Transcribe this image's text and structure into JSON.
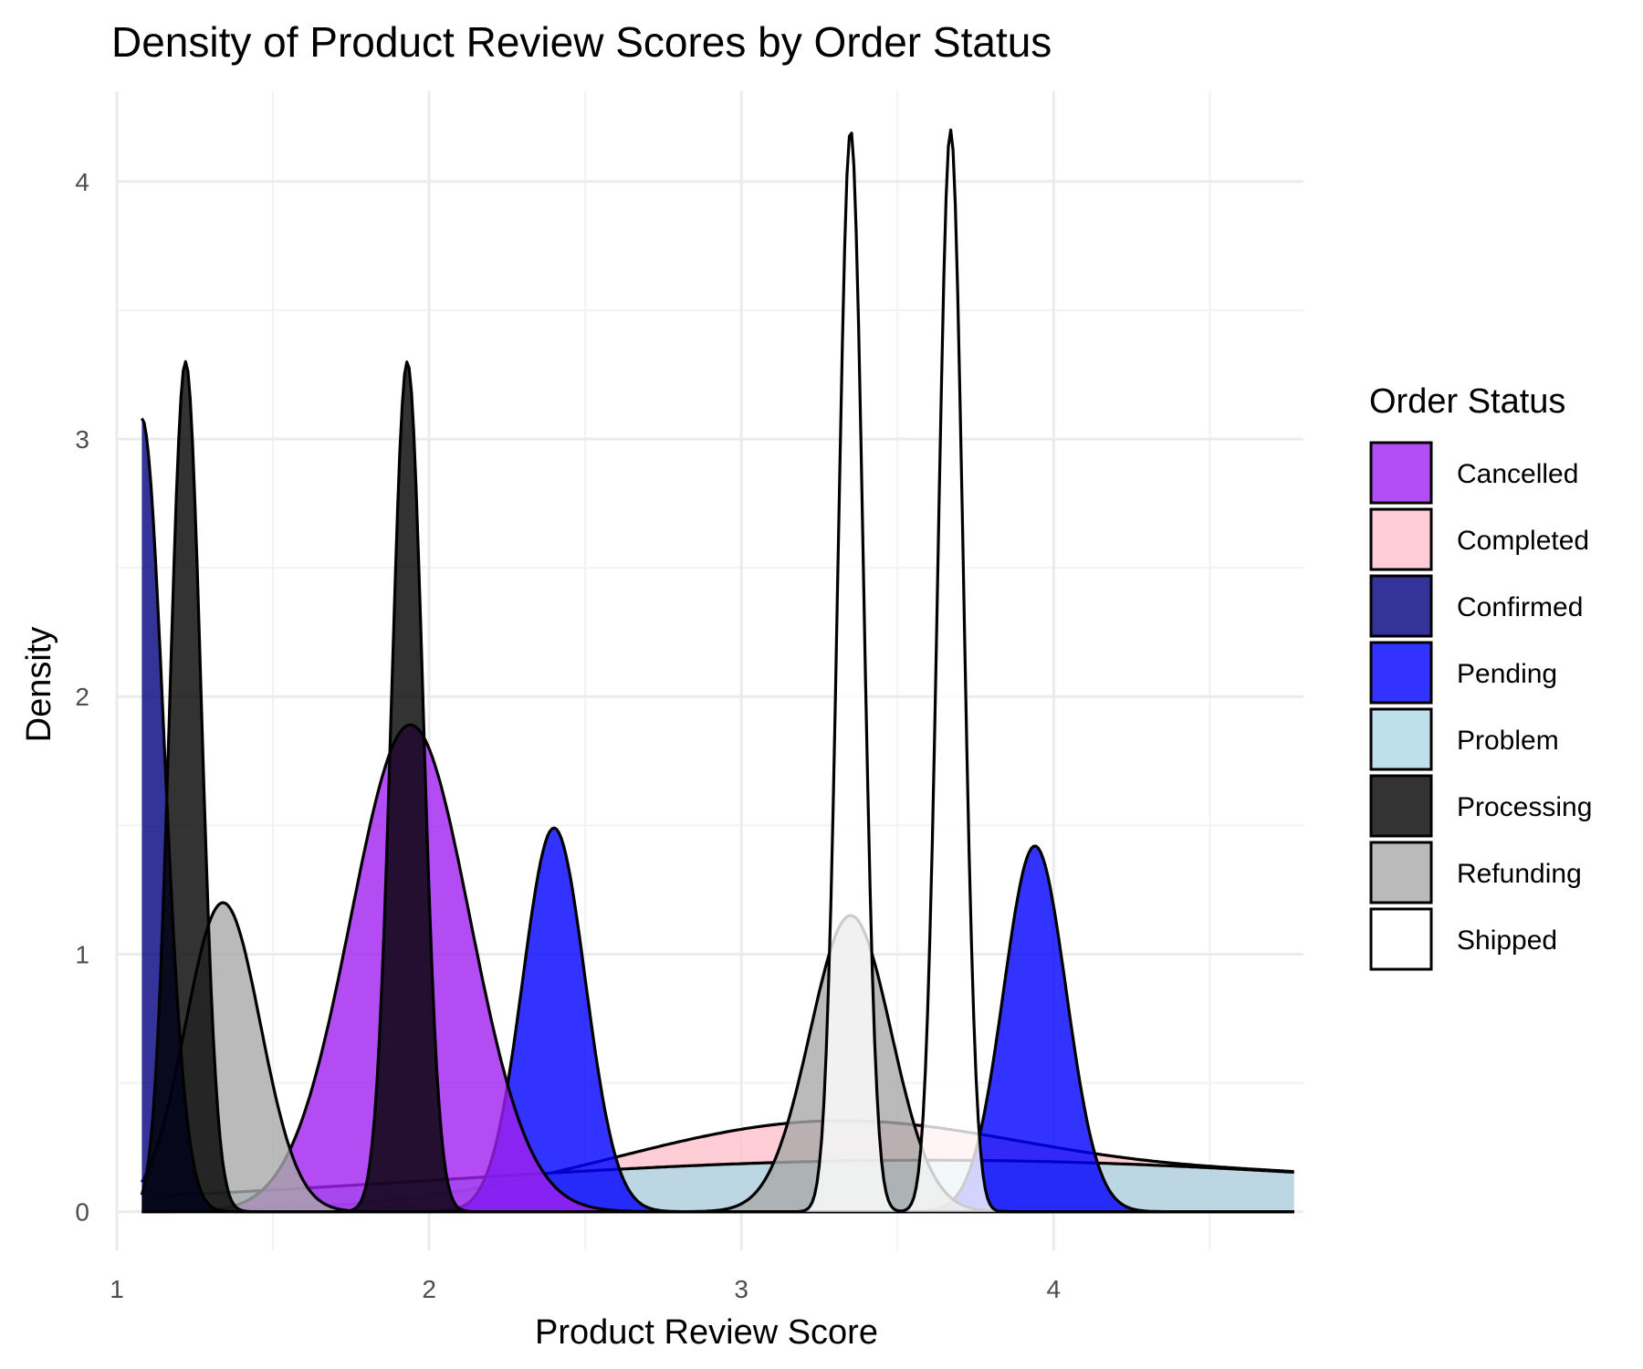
{
  "chart_data": {
    "type": "density",
    "title": "Density of Product Review Scores by Order Status",
    "xlabel": "Product Review Score",
    "ylabel": "Density",
    "xlim": [
      1.0,
      4.8
    ],
    "ylim": [
      -0.15,
      4.35
    ],
    "x_ticks": [
      1,
      2,
      3,
      4
    ],
    "y_ticks": [
      0,
      1,
      2,
      3,
      4
    ],
    "grid": true,
    "legend": {
      "title": "Order Status",
      "position": "right",
      "entries": [
        "Cancelled",
        "Completed",
        "Confirmed",
        "Pending",
        "Problem",
        "Processing",
        "Refunding",
        "Shipped"
      ]
    },
    "colors": {
      "Cancelled": "#a020f0",
      "Completed": "#ffc0cb",
      "Confirmed": "#000080",
      "Pending": "#0000ff",
      "Problem": "#add8e6",
      "Processing": "#000000",
      "Refunding": "#a9a9a9",
      "Shipped": "#ffffff"
    },
    "x_range": [
      1.08,
      4.77
    ],
    "series": [
      {
        "name": "Completed",
        "components": [
          {
            "mu": 3.3,
            "sigma": 0.7,
            "peak": 0.35
          },
          {
            "mu": 4.9,
            "sigma": 0.6,
            "peak": 0.12
          }
        ]
      },
      {
        "name": "Problem",
        "components": [
          {
            "mu": 3.6,
            "sigma": 1.6,
            "peak": 0.2
          }
        ]
      },
      {
        "name": "Pending",
        "components": [
          {
            "mu": 2.4,
            "sigma": 0.1,
            "peak": 1.49
          },
          {
            "mu": 3.94,
            "sigma": 0.1,
            "peak": 1.42
          }
        ]
      },
      {
        "name": "Cancelled",
        "components": [
          {
            "mu": 1.94,
            "sigma": 0.19,
            "peak": 1.89
          }
        ]
      },
      {
        "name": "Refunding",
        "components": [
          {
            "mu": 1.34,
            "sigma": 0.12,
            "peak": 1.2
          },
          {
            "mu": 3.35,
            "sigma": 0.13,
            "peak": 1.15
          }
        ]
      },
      {
        "name": "Confirmed",
        "components": [
          {
            "mu": 1.08,
            "sigma": 0.07,
            "peak": 3.08
          }
        ]
      },
      {
        "name": "Processing",
        "components": [
          {
            "mu": 1.22,
            "sigma": 0.05,
            "peak": 3.3
          },
          {
            "mu": 1.93,
            "sigma": 0.05,
            "peak": 3.3
          }
        ]
      },
      {
        "name": "Shipped",
        "components": [
          {
            "mu": 3.35,
            "sigma": 0.04,
            "peak": 4.2
          },
          {
            "mu": 3.67,
            "sigma": 0.04,
            "peak": 4.2
          }
        ]
      }
    ]
  }
}
